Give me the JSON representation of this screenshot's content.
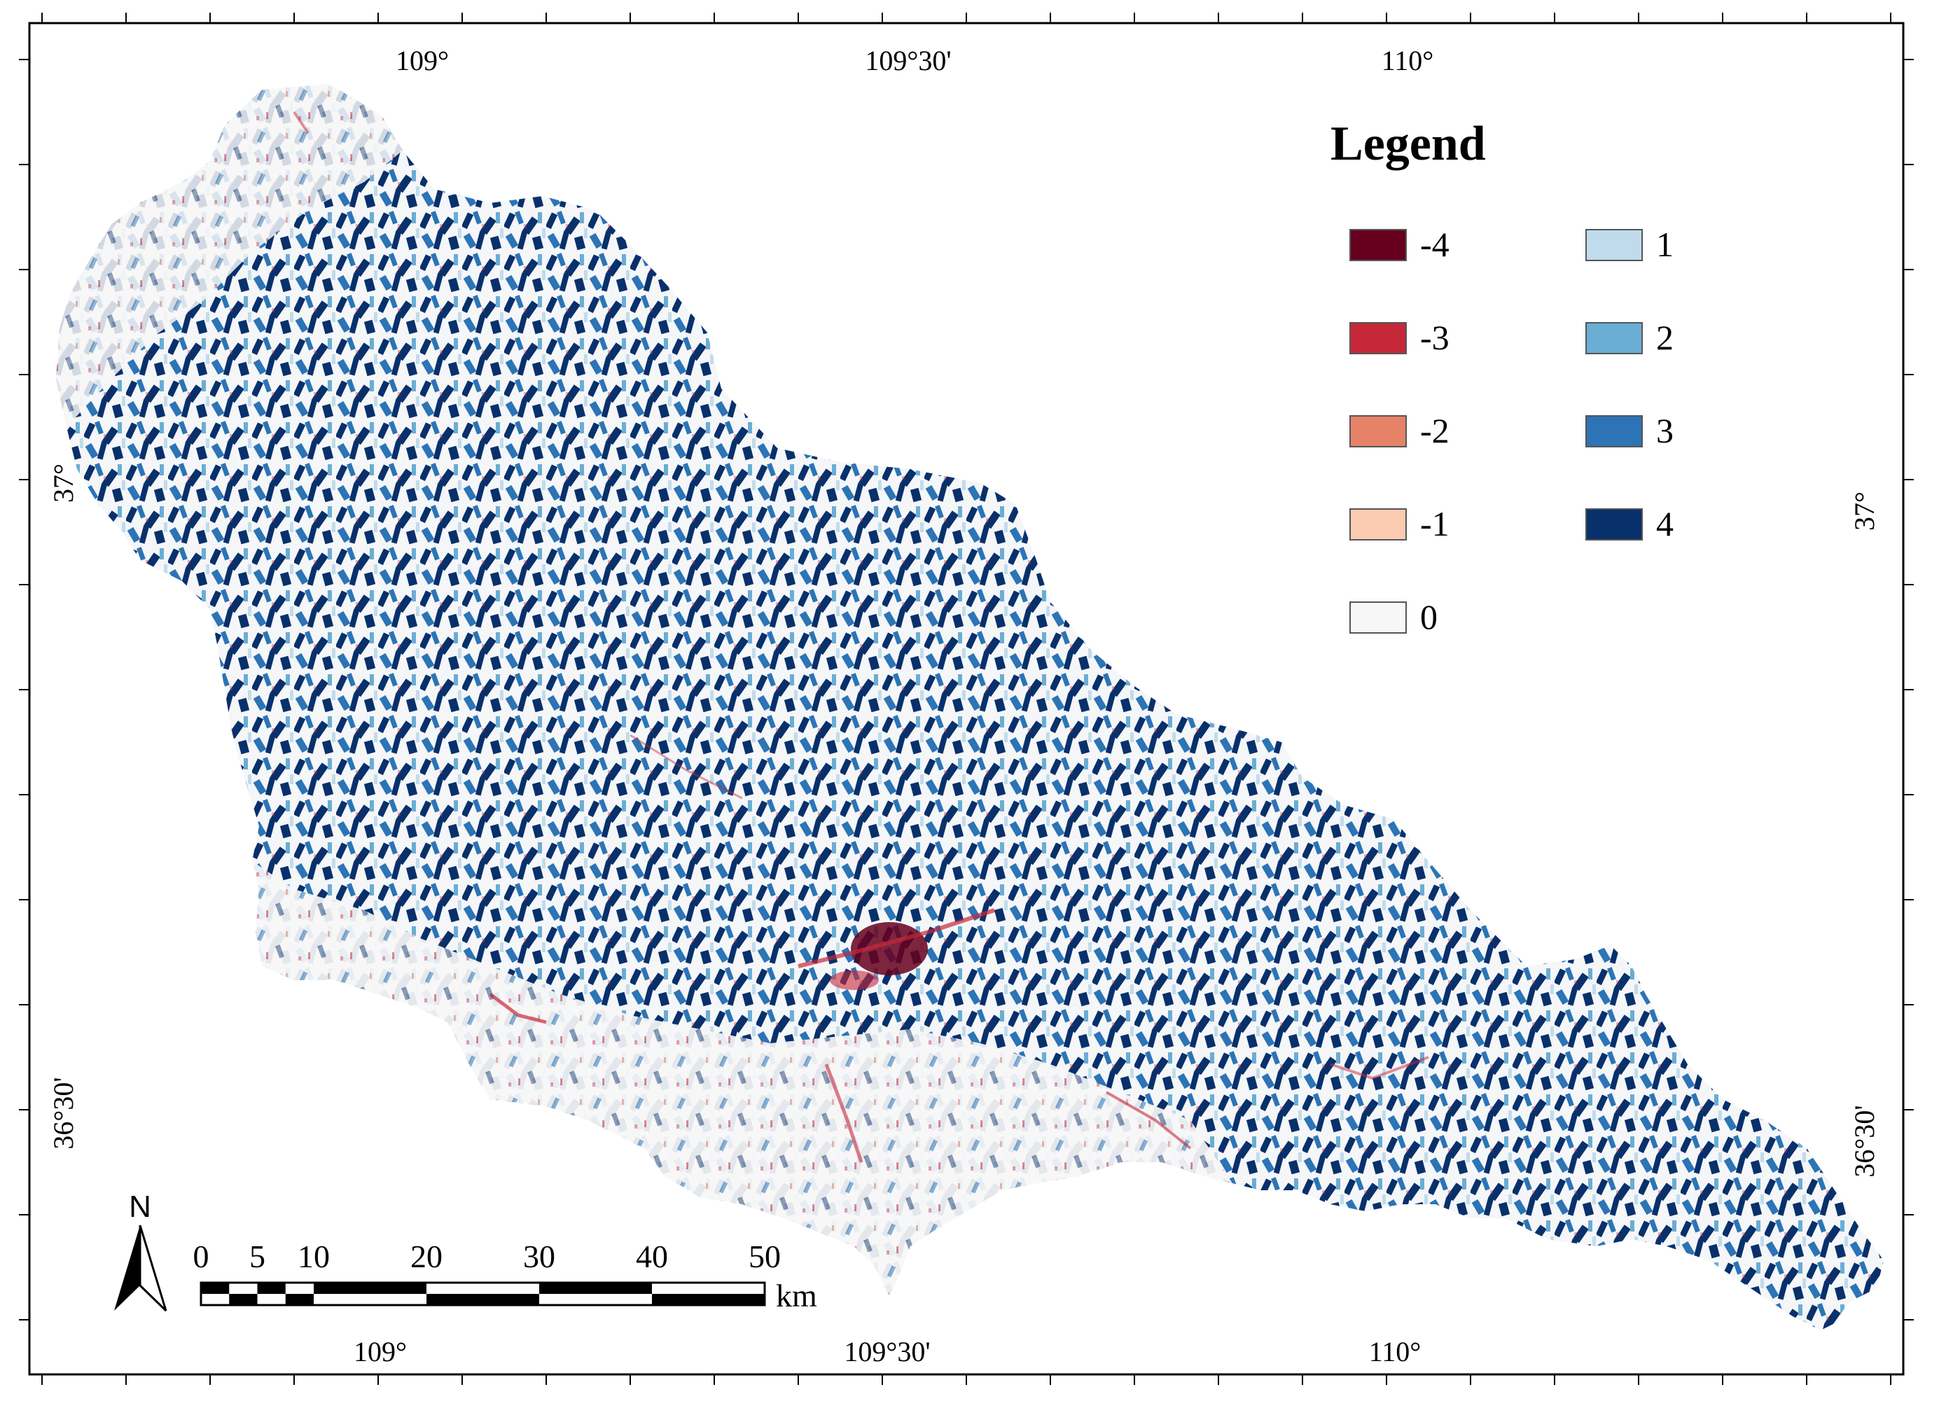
{
  "map": {
    "top_longitudes": [
      "109°",
      "109°30'",
      "110°"
    ],
    "bottom_longitudes": [
      "109°",
      "109°30'",
      "110°"
    ],
    "left_latitudes": [
      "37°",
      "36°30'"
    ],
    "right_latitudes": [
      "37°",
      "36°30'"
    ]
  },
  "legend": {
    "title": "Legend",
    "items": [
      {
        "label": "-4",
        "color": "#67001f"
      },
      {
        "label": "-3",
        "color": "#c6283a"
      },
      {
        "label": "-2",
        "color": "#e58267"
      },
      {
        "label": "-1",
        "color": "#fbcbb2"
      },
      {
        "label": "0",
        "color": "#f7f7f7"
      },
      {
        "label": "1",
        "color": "#c0dcec"
      },
      {
        "label": "2",
        "color": "#6aadd5"
      },
      {
        "label": "3",
        "color": "#2c74b5"
      },
      {
        "label": "4",
        "color": "#08306b"
      }
    ]
  },
  "scale_bar": {
    "ticks": [
      "0",
      "5",
      "10",
      "20",
      "30",
      "40",
      "50"
    ],
    "unit": "km"
  },
  "north_arrow": {
    "label": "N",
    "icon": "north-arrow-icon"
  }
}
